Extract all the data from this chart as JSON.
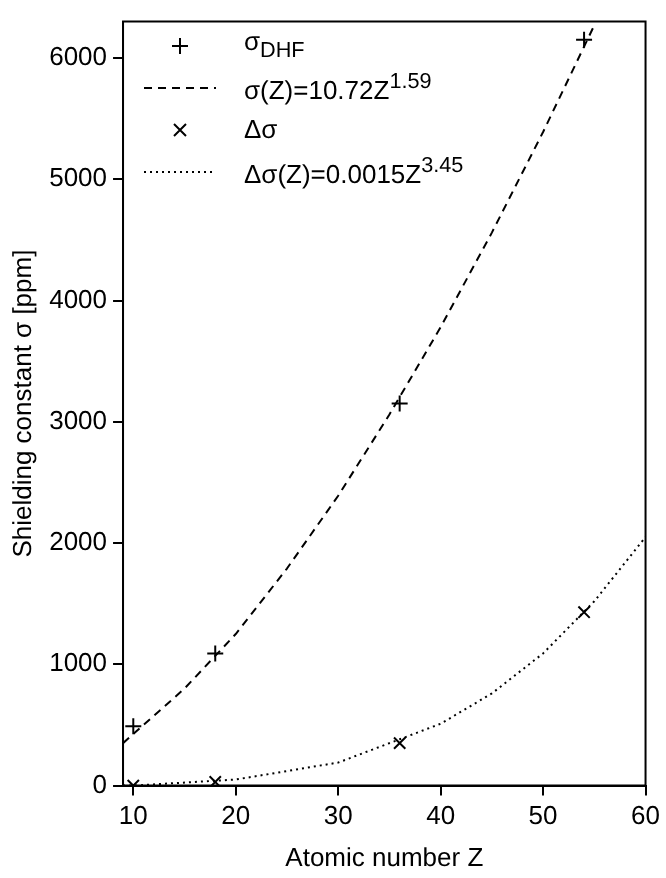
{
  "chart_data": {
    "type": "scatter",
    "xlabel": "Atomic number Z",
    "ylabel": "Shielding constant σ [ppm]",
    "xlim": [
      9,
      60
    ],
    "xticks": [
      10,
      20,
      30,
      40,
      50,
      60
    ],
    "ylim": [
      0,
      6300
    ],
    "yticks": [
      0,
      1000,
      2000,
      3000,
      4000,
      5000,
      6000
    ],
    "grid": false,
    "legend": "top left",
    "series": [
      {
        "name": "σ$_{DHF}$",
        "type": "scatter",
        "marker": "plus",
        "color": "#000000",
        "x": [
          10,
          18,
          36,
          54
        ],
        "values": [
          490,
          1090,
          3150,
          6150
        ]
      },
      {
        "name": "σ(Z)=10.72Z$^{1.59}$",
        "type": "line",
        "line_style": "dashed",
        "marker": "none",
        "color": "#000000",
        "x": [
          9,
          15,
          20,
          25,
          30,
          35,
          40,
          45,
          50,
          55
        ],
        "values": [
          350,
          800,
          1250,
          1790,
          2390,
          3060,
          3780,
          4560,
          5390,
          6270
        ]
      },
      {
        "name": "Δσ",
        "type": "scatter",
        "marker": "cross",
        "color": "#000000",
        "x": [
          10,
          18,
          36,
          54
        ],
        "values": [
          0,
          30,
          350,
          1430
        ]
      },
      {
        "name": "Δσ(Z)=0.0015Z$^{3.45}$",
        "type": "line",
        "line_style": "dotted",
        "marker": "none",
        "color": "#000000",
        "x": [
          9,
          10,
          20,
          30,
          40,
          45,
          50,
          55,
          60
        ],
        "values": [
          0,
          0,
          50,
          190,
          510,
          760,
          1090,
          1520,
          2050
        ]
      }
    ]
  }
}
